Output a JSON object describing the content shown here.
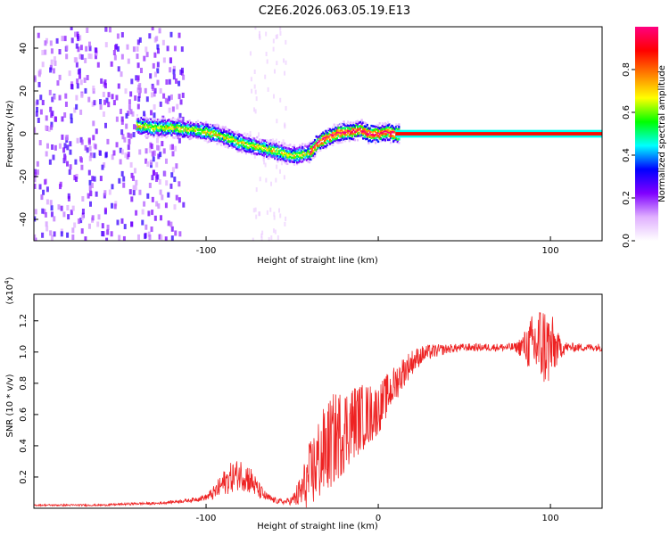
{
  "figure_title": "C2E6.2026.063.05.19.E13",
  "chart_data": [
    {
      "type": "heatmap",
      "xlabel": "Height of straight line (km)",
      "ylabel": "Frequency (Hz)",
      "xlim": [
        -200,
        130
      ],
      "ylim": [
        -50,
        50
      ],
      "x_ticks": [
        -100,
        0,
        100
      ],
      "x_tick_labels": [
        "-100",
        "",
        "100"
      ],
      "y_ticks": [
        -40,
        -20,
        0,
        20,
        40
      ],
      "y_tick_labels": [
        "-40",
        "-20",
        "0",
        "20",
        "40"
      ],
      "colorbar": {
        "label": "Normalized spectral amplitude",
        "range": [
          0,
          1
        ],
        "ticks": [
          0.0,
          0.2,
          0.4,
          0.6,
          0.8
        ],
        "tick_labels": [
          "0.0",
          "0.2",
          "0.4",
          "0.6",
          "0.8"
        ],
        "colors": [
          "#ffffff",
          "#e0b0ff",
          "#8000ff",
          "#0000ff",
          "#00ffff",
          "#00ff00",
          "#ffff00",
          "#ff8000",
          "#ff0000",
          "#ff0080"
        ]
      },
      "noise_region": {
        "x_start": -200,
        "x_end": -113,
        "freq_range": [
          -50,
          50
        ]
      },
      "ridge": [
        {
          "x": -140,
          "f": 4
        },
        {
          "x": -130,
          "f": 3
        },
        {
          "x": -120,
          "f": 3
        },
        {
          "x": -110,
          "f": 2
        },
        {
          "x": -100,
          "f": 1
        },
        {
          "x": -90,
          "f": -1
        },
        {
          "x": -80,
          "f": -4
        },
        {
          "x": -70,
          "f": -6
        },
        {
          "x": -60,
          "f": -8
        },
        {
          "x": -50,
          "f": -10
        },
        {
          "x": -40,
          "f": -9
        },
        {
          "x": -35,
          "f": -4
        },
        {
          "x": -30,
          "f": -2
        },
        {
          "x": -25,
          "f": 0
        },
        {
          "x": -20,
          "f": 1
        },
        {
          "x": -15,
          "f": 1
        },
        {
          "x": -10,
          "f": 2
        },
        {
          "x": -5,
          "f": 0
        },
        {
          "x": 0,
          "f": 0
        },
        {
          "x": 5,
          "f": 1
        },
        {
          "x": 10,
          "f": 0
        },
        {
          "x": 130,
          "f": 0
        }
      ]
    },
    {
      "type": "line",
      "xlabel": "Height of straight line (km)",
      "ylabel": "SNR (10 * v/v)",
      "y_scale_note": "(x10^4)",
      "y_scale_base": "(x10",
      "y_scale_exp": "4",
      "y_scale_tail": ")",
      "xlim": [
        -200,
        130
      ],
      "ylim": [
        0,
        1.37
      ],
      "x_ticks": [
        -100,
        0,
        100
      ],
      "x_tick_labels": [
        "-100",
        "0",
        "100"
      ],
      "y_ticks": [
        0.2,
        0.4,
        0.6,
        0.8,
        1.0,
        1.2
      ],
      "y_tick_labels": [
        "0.2",
        "0.4",
        "0.6",
        "0.8",
        "1.0",
        "1.2"
      ],
      "series": [
        {
          "name": "SNR",
          "color": "#ee2222",
          "x": [
            -200,
            -180,
            -160,
            -140,
            -130,
            -120,
            -110,
            -100,
            -95,
            -90,
            -85,
            -80,
            -75,
            -70,
            -65,
            -60,
            -55,
            -50,
            -45,
            -40,
            -35,
            -30,
            -25,
            -20,
            -15,
            -10,
            -5,
            0,
            5,
            10,
            15,
            20,
            25,
            30,
            40,
            50,
            60,
            70,
            80,
            85,
            90,
            95,
            100,
            105,
            110,
            120,
            130
          ],
          "y": [
            0.02,
            0.02,
            0.02,
            0.03,
            0.03,
            0.04,
            0.05,
            0.07,
            0.1,
            0.16,
            0.2,
            0.22,
            0.19,
            0.12,
            0.07,
            0.05,
            0.04,
            0.05,
            0.1,
            0.2,
            0.3,
            0.38,
            0.45,
            0.5,
            0.55,
            0.58,
            0.6,
            0.63,
            0.72,
            0.8,
            0.88,
            0.94,
            0.98,
            1.0,
            1.02,
            1.03,
            1.03,
            1.03,
            1.03,
            1.04,
            1.04,
            1.05,
            1.02,
            1.03,
            1.03,
            1.03,
            1.03
          ],
          "noise_amp": [
            0.005,
            0.006,
            0.006,
            0.008,
            0.008,
            0.01,
            0.012,
            0.02,
            0.05,
            0.08,
            0.1,
            0.1,
            0.1,
            0.06,
            0.03,
            0.02,
            0.015,
            0.03,
            0.12,
            0.22,
            0.28,
            0.3,
            0.3,
            0.28,
            0.25,
            0.22,
            0.2,
            0.16,
            0.14,
            0.12,
            0.1,
            0.08,
            0.06,
            0.05,
            0.03,
            0.025,
            0.025,
            0.025,
            0.03,
            0.1,
            0.22,
            0.28,
            0.25,
            0.08,
            0.03,
            0.025,
            0.025
          ]
        }
      ]
    }
  ]
}
